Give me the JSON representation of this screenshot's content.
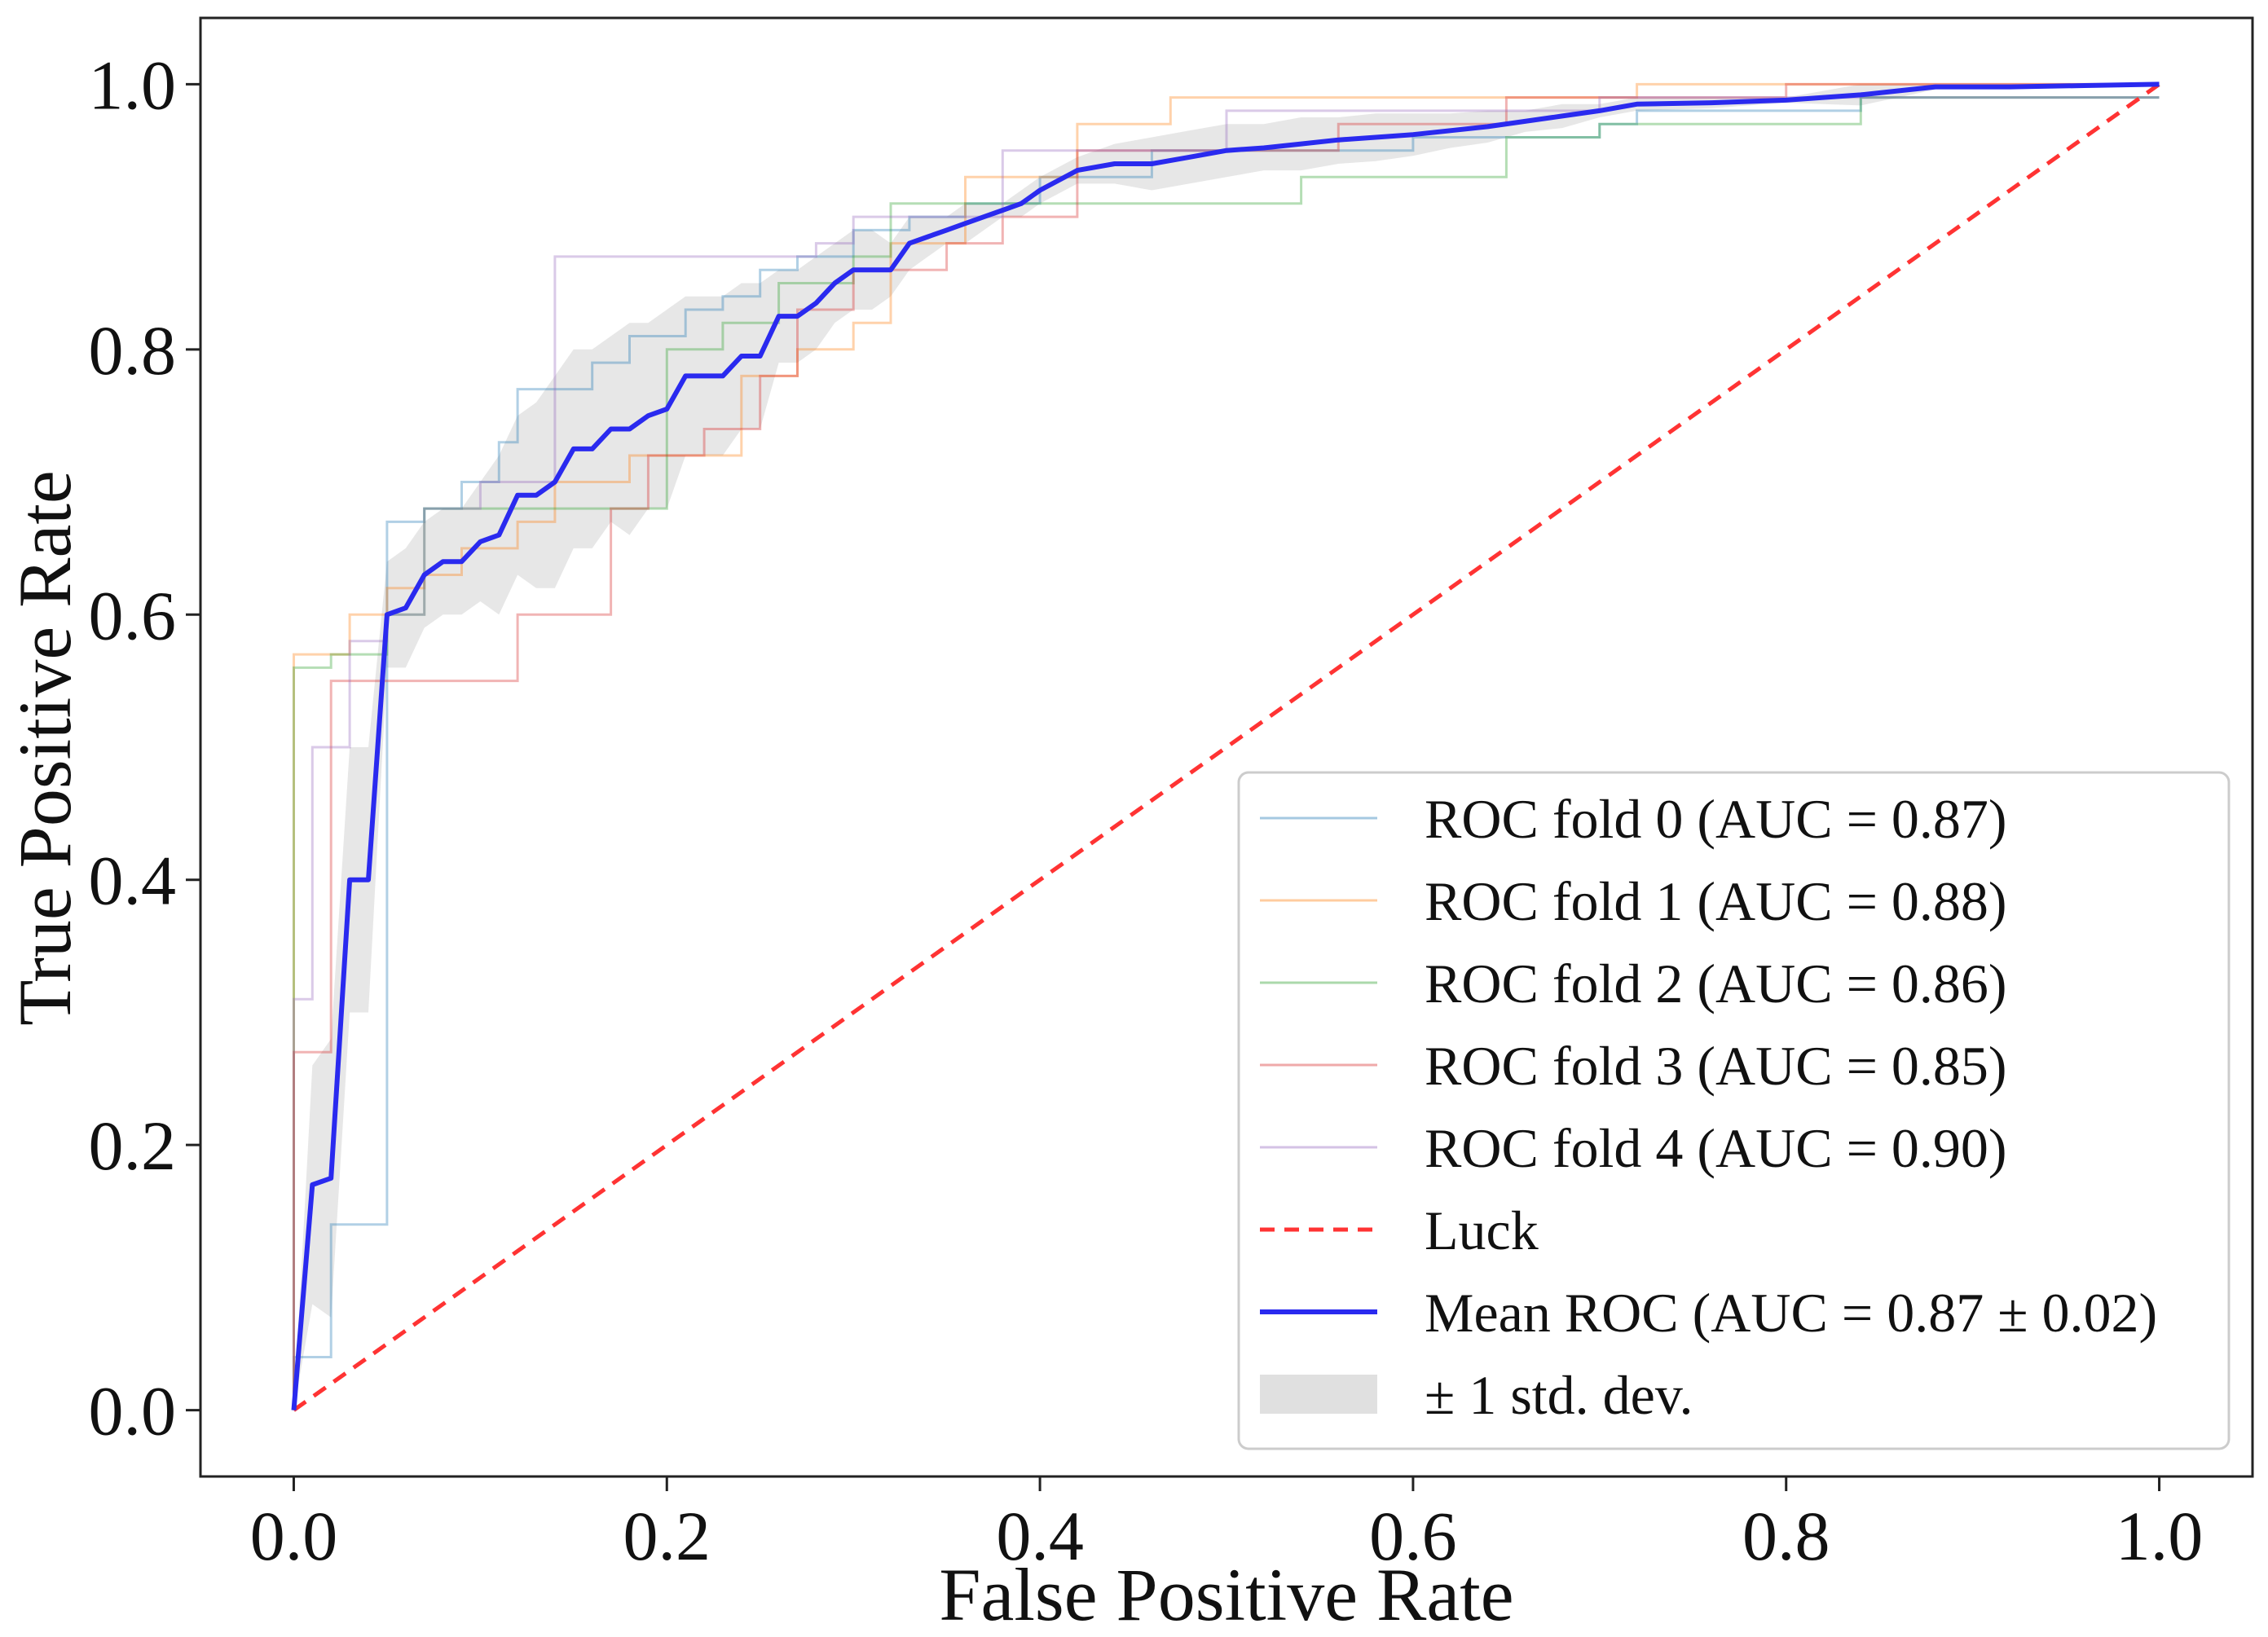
{
  "chart_data": {
    "type": "line",
    "title": "",
    "xlabel": "False Positive Rate",
    "ylabel": "True Positive Rate",
    "xlim": [
      -0.05,
      1.05
    ],
    "ylim": [
      -0.05,
      1.05
    ],
    "xticks": [
      0.0,
      0.2,
      0.4,
      0.6,
      0.8,
      1.0
    ],
    "yticks": [
      0.0,
      0.2,
      0.4,
      0.6,
      0.8,
      1.0
    ],
    "xtick_labels": [
      "0.0",
      "0.2",
      "0.4",
      "0.6",
      "0.8",
      "1.0"
    ],
    "ytick_labels": [
      "0.0",
      "0.2",
      "0.4",
      "0.6",
      "0.8",
      "1.0"
    ],
    "legend_position": "bottom-right",
    "series": [
      {
        "name": "ROC fold 0 (AUC = 0.87)",
        "color": "#1f77b4",
        "opacity": 0.35,
        "x": [
          0,
          0,
          0.02,
          0.02,
          0.05,
          0.05,
          0.07,
          0.07,
          0.09,
          0.09,
          0.11,
          0.11,
          0.12,
          0.12,
          0.14,
          0.14,
          0.16,
          0.16,
          0.18,
          0.18,
          0.21,
          0.21,
          0.23,
          0.23,
          0.25,
          0.25,
          0.27,
          0.27,
          0.3,
          0.3,
          0.33,
          0.33,
          0.36,
          0.36,
          0.4,
          0.4,
          0.46,
          0.46,
          0.6,
          0.6,
          0.7,
          0.7,
          0.72,
          0.72,
          0.84,
          0.84,
          1.0
        ],
        "y": [
          0,
          0.04,
          0.04,
          0.14,
          0.14,
          0.67,
          0.67,
          0.68,
          0.68,
          0.7,
          0.7,
          0.73,
          0.73,
          0.77,
          0.77,
          0.77,
          0.77,
          0.79,
          0.79,
          0.81,
          0.81,
          0.83,
          0.83,
          0.84,
          0.84,
          0.86,
          0.86,
          0.87,
          0.87,
          0.89,
          0.89,
          0.9,
          0.9,
          0.91,
          0.91,
          0.93,
          0.93,
          0.95,
          0.95,
          0.96,
          0.96,
          0.97,
          0.97,
          0.98,
          0.98,
          0.99,
          0.99
        ]
      },
      {
        "name": "ROC fold 1 (AUC = 0.88)",
        "color": "#ff7f0e",
        "opacity": 0.35,
        "x": [
          0,
          0,
          0.03,
          0.03,
          0.05,
          0.05,
          0.07,
          0.07,
          0.09,
          0.09,
          0.12,
          0.12,
          0.14,
          0.14,
          0.18,
          0.18,
          0.24,
          0.24,
          0.27,
          0.27,
          0.3,
          0.3,
          0.32,
          0.32,
          0.36,
          0.36,
          0.42,
          0.42,
          0.47,
          0.47,
          0.55,
          0.55,
          0.72,
          0.72,
          1.0
        ],
        "y": [
          0,
          0.57,
          0.57,
          0.6,
          0.6,
          0.62,
          0.62,
          0.63,
          0.63,
          0.65,
          0.65,
          0.67,
          0.67,
          0.7,
          0.7,
          0.72,
          0.72,
          0.78,
          0.78,
          0.8,
          0.8,
          0.82,
          0.82,
          0.88,
          0.88,
          0.93,
          0.93,
          0.97,
          0.97,
          0.99,
          0.99,
          0.99,
          0.99,
          1.0,
          1.0
        ]
      },
      {
        "name": "ROC fold 2 (AUC = 0.86)",
        "color": "#2ca02c",
        "opacity": 0.35,
        "x": [
          0,
          0,
          0.02,
          0.02,
          0.05,
          0.05,
          0.07,
          0.07,
          0.1,
          0.1,
          0.14,
          0.14,
          0.2,
          0.2,
          0.23,
          0.23,
          0.26,
          0.26,
          0.3,
          0.3,
          0.32,
          0.32,
          0.36,
          0.36,
          0.4,
          0.4,
          0.54,
          0.54,
          0.65,
          0.65,
          0.7,
          0.7,
          0.84,
          0.84,
          1.0
        ],
        "y": [
          0,
          0.56,
          0.56,
          0.57,
          0.57,
          0.6,
          0.6,
          0.68,
          0.68,
          0.68,
          0.68,
          0.68,
          0.68,
          0.8,
          0.8,
          0.82,
          0.82,
          0.85,
          0.85,
          0.87,
          0.87,
          0.91,
          0.91,
          0.91,
          0.91,
          0.91,
          0.91,
          0.93,
          0.93,
          0.96,
          0.96,
          0.97,
          0.97,
          0.99,
          0.99
        ]
      },
      {
        "name": "ROC fold 3 (AUC = 0.85)",
        "color": "#d62728",
        "opacity": 0.35,
        "x": [
          0,
          0,
          0.02,
          0.02,
          0.05,
          0.05,
          0.12,
          0.12,
          0.17,
          0.17,
          0.19,
          0.19,
          0.22,
          0.22,
          0.25,
          0.25,
          0.27,
          0.27,
          0.3,
          0.3,
          0.35,
          0.35,
          0.38,
          0.38,
          0.42,
          0.42,
          0.56,
          0.56,
          0.65,
          0.65,
          0.8,
          0.8,
          1.0
        ],
        "y": [
          0,
          0.27,
          0.27,
          0.55,
          0.55,
          0.55,
          0.55,
          0.6,
          0.6,
          0.68,
          0.68,
          0.72,
          0.72,
          0.74,
          0.74,
          0.78,
          0.78,
          0.83,
          0.83,
          0.86,
          0.86,
          0.88,
          0.88,
          0.9,
          0.9,
          0.95,
          0.95,
          0.97,
          0.97,
          0.99,
          0.99,
          1.0,
          1.0
        ]
      },
      {
        "name": "ROC fold 4 (AUC = 0.90)",
        "color": "#9467bd",
        "opacity": 0.35,
        "x": [
          0,
          0,
          0.01,
          0.01,
          0.03,
          0.03,
          0.05,
          0.05,
          0.07,
          0.07,
          0.1,
          0.1,
          0.14,
          0.14,
          0.16,
          0.16,
          0.21,
          0.21,
          0.28,
          0.28,
          0.3,
          0.3,
          0.38,
          0.38,
          0.5,
          0.5,
          0.7,
          0.7,
          1.0
        ],
        "y": [
          0,
          0.31,
          0.31,
          0.5,
          0.5,
          0.58,
          0.58,
          0.6,
          0.6,
          0.68,
          0.68,
          0.7,
          0.7,
          0.87,
          0.87,
          0.87,
          0.87,
          0.87,
          0.87,
          0.88,
          0.88,
          0.9,
          0.9,
          0.95,
          0.95,
          0.98,
          0.98,
          0.99,
          0.99
        ]
      }
    ],
    "luck": {
      "name": "Luck",
      "color": "#ff3333",
      "x": [
        0,
        1
      ],
      "y": [
        0,
        1
      ]
    },
    "mean_roc": {
      "name": "Mean ROC (AUC = 0.87 ± 0.02)",
      "color": "#2a2aef",
      "x": [
        0,
        0.01,
        0.02,
        0.03,
        0.04,
        0.05,
        0.06,
        0.07,
        0.08,
        0.09,
        0.1,
        0.11,
        0.12,
        0.13,
        0.14,
        0.15,
        0.16,
        0.17,
        0.18,
        0.19,
        0.2,
        0.21,
        0.22,
        0.23,
        0.24,
        0.25,
        0.26,
        0.27,
        0.28,
        0.29,
        0.3,
        0.31,
        0.32,
        0.33,
        0.34,
        0.35,
        0.36,
        0.37,
        0.38,
        0.39,
        0.4,
        0.42,
        0.44,
        0.46,
        0.48,
        0.5,
        0.52,
        0.54,
        0.56,
        0.58,
        0.6,
        0.62,
        0.64,
        0.66,
        0.68,
        0.7,
        0.72,
        0.76,
        0.8,
        0.84,
        0.86,
        0.88,
        0.92,
        0.96,
        1.0
      ],
      "y": [
        0,
        0.17,
        0.175,
        0.4,
        0.4,
        0.6,
        0.605,
        0.63,
        0.64,
        0.64,
        0.655,
        0.66,
        0.69,
        0.69,
        0.7,
        0.725,
        0.725,
        0.74,
        0.74,
        0.75,
        0.755,
        0.78,
        0.78,
        0.78,
        0.795,
        0.795,
        0.825,
        0.825,
        0.835,
        0.85,
        0.86,
        0.86,
        0.86,
        0.88,
        0.885,
        0.89,
        0.895,
        0.9,
        0.905,
        0.91,
        0.92,
        0.935,
        0.94,
        0.94,
        0.945,
        0.95,
        0.952,
        0.955,
        0.958,
        0.96,
        0.962,
        0.965,
        0.968,
        0.972,
        0.976,
        0.98,
        0.985,
        0.986,
        0.988,
        0.992,
        0.995,
        0.998,
        0.998,
        0.999,
        1.0
      ]
    },
    "std_band": {
      "name": "± 1 std. dev.",
      "color": "#d3d3d3",
      "x": [
        0,
        0.01,
        0.02,
        0.03,
        0.04,
        0.05,
        0.06,
        0.07,
        0.08,
        0.09,
        0.1,
        0.11,
        0.12,
        0.13,
        0.14,
        0.15,
        0.16,
        0.17,
        0.18,
        0.19,
        0.2,
        0.21,
        0.22,
        0.23,
        0.24,
        0.25,
        0.26,
        0.27,
        0.28,
        0.29,
        0.3,
        0.31,
        0.32,
        0.33,
        0.34,
        0.35,
        0.36,
        0.37,
        0.38,
        0.39,
        0.4,
        0.42,
        0.44,
        0.46,
        0.48,
        0.5,
        0.52,
        0.54,
        0.56,
        0.58,
        0.6,
        0.62,
        0.64,
        0.66,
        0.68,
        0.7,
        0.72,
        0.76,
        0.8,
        0.84,
        0.86,
        0.88,
        0.92,
        0.96,
        1.0
      ],
      "upper": [
        0,
        0.26,
        0.28,
        0.5,
        0.5,
        0.64,
        0.65,
        0.67,
        0.68,
        0.68,
        0.7,
        0.72,
        0.75,
        0.76,
        0.78,
        0.8,
        0.8,
        0.81,
        0.82,
        0.82,
        0.83,
        0.84,
        0.84,
        0.84,
        0.85,
        0.85,
        0.86,
        0.86,
        0.87,
        0.88,
        0.89,
        0.89,
        0.88,
        0.9,
        0.9,
        0.9,
        0.91,
        0.91,
        0.91,
        0.92,
        0.93,
        0.945,
        0.955,
        0.96,
        0.965,
        0.97,
        0.97,
        0.975,
        0.975,
        0.978,
        0.978,
        0.978,
        0.98,
        0.98,
        0.985,
        0.985,
        0.99,
        0.99,
        0.99,
        1.0,
        1.0,
        1.0,
        1.0,
        1.0,
        1.0
      ],
      "lower": [
        0,
        0.08,
        0.07,
        0.3,
        0.3,
        0.56,
        0.56,
        0.59,
        0.6,
        0.6,
        0.61,
        0.6,
        0.63,
        0.62,
        0.62,
        0.65,
        0.65,
        0.67,
        0.66,
        0.68,
        0.68,
        0.72,
        0.72,
        0.72,
        0.74,
        0.74,
        0.79,
        0.79,
        0.8,
        0.82,
        0.83,
        0.83,
        0.84,
        0.86,
        0.87,
        0.88,
        0.88,
        0.89,
        0.9,
        0.9,
        0.91,
        0.925,
        0.925,
        0.92,
        0.925,
        0.93,
        0.935,
        0.935,
        0.94,
        0.942,
        0.946,
        0.952,
        0.956,
        0.964,
        0.967,
        0.975,
        0.98,
        0.982,
        0.986,
        0.984,
        0.99,
        0.996,
        0.996,
        0.998,
        1.0
      ]
    },
    "legend": [
      "ROC fold 0 (AUC = 0.87)",
      "ROC fold 1 (AUC = 0.88)",
      "ROC fold 2 (AUC = 0.86)",
      "ROC fold 3 (AUC = 0.85)",
      "ROC fold 4 (AUC = 0.90)",
      "Luck",
      "Mean ROC (AUC = 0.87 ± 0.02)",
      "± 1 std. dev."
    ]
  }
}
